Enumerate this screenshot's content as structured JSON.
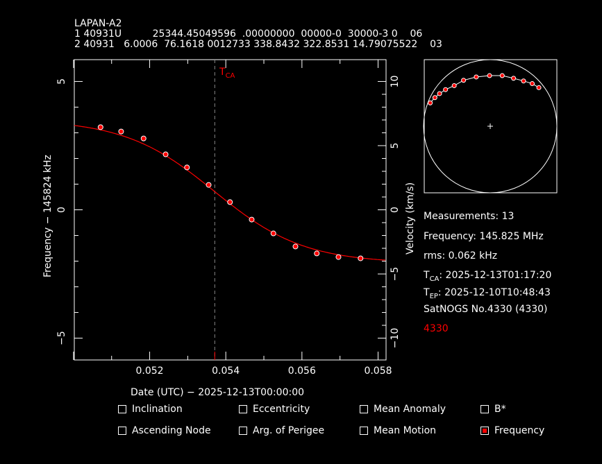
{
  "header": {
    "name": "LAPAN-A2",
    "tle_line1": "1 40931U          25344.45049596  .00000000  00000-0  30000-3 0    06",
    "tle_line2": "2 40931   6.0006  76.1618 0012733 338.8432 322.8531 14.79075522    03"
  },
  "chart_data": {
    "type": "scatter",
    "xlabel": "Date (UTC) − 2025-12-13T00:00:00",
    "ylabel": "Frequency − 145824 kHz",
    "y2label": "Velocity (km/s)",
    "xlim": [
      0.05002,
      0.05821
    ],
    "ylim": [
      -5.85,
      5.85
    ],
    "y2lim": [
      -11.7,
      11.7
    ],
    "xticks": [
      "0.052",
      "0.054",
      "0.056",
      "0.058"
    ],
    "xtick_values": [
      0.052,
      0.054,
      0.056,
      0.058
    ],
    "yticks": [
      "5",
      "0",
      "−5"
    ],
    "ytick_values": [
      5,
      0,
      -5
    ],
    "y2ticks": [
      "10",
      "5",
      "0",
      "−5",
      "−10"
    ],
    "y2tick_values": [
      10,
      5,
      0,
      -5,
      -10
    ],
    "tca_label": "T",
    "tca_sub": "CA",
    "tca_x": 0.05371,
    "points": {
      "x": [
        0.05071,
        0.05125,
        0.05184,
        0.05242,
        0.05298,
        0.05355,
        0.05411,
        0.05468,
        0.05525,
        0.05583,
        0.05639,
        0.05696,
        0.05754
      ],
      "y": [
        3.22,
        3.05,
        2.78,
        2.16,
        1.65,
        0.97,
        0.3,
        -0.38,
        -0.92,
        -1.43,
        -1.7,
        -1.84,
        -1.89
      ]
    },
    "fit": {
      "model": "c - A*tanh((t-t0)/w)",
      "c": 0.72,
      "A": 2.8,
      "t0": 0.0537,
      "w": 0.00235
    },
    "sky_track": {
      "x": [
        -0.9,
        -0.83,
        -0.76,
        -0.67,
        -0.54,
        -0.4,
        -0.21,
        -0.01,
        0.18,
        0.35,
        0.5,
        0.63,
        0.73
      ],
      "y": [
        0.35,
        0.43,
        0.49,
        0.55,
        0.61,
        0.69,
        0.74,
        0.76,
        0.76,
        0.72,
        0.68,
        0.64,
        0.58
      ]
    },
    "colors": {
      "points": "#ff0000",
      "fit": "#ff0000",
      "axes": "#ffffff",
      "tca": "#888888"
    }
  },
  "info": {
    "measurements": "Measurements: 13",
    "frequency": "Frequency: 145.825 MHz",
    "rms": "rms: 0.062 kHz",
    "tca_label": "T",
    "tca_sub": "CA",
    "tca_value": ": 2025-12-13T01:17:20",
    "tep_label": "T",
    "tep_sub": "EP",
    "tep_value": ": 2025-12-10T10:48:43",
    "station": "SatNOGS No.4330 (4330)",
    "station_id_red": "4330"
  },
  "checkboxes": [
    {
      "label": "Inclination",
      "checked": false
    },
    {
      "label": "Eccentricity",
      "checked": false
    },
    {
      "label": "Mean Anomaly",
      "checked": false
    },
    {
      "label": "B*",
      "checked": false
    },
    {
      "label": "Ascending Node",
      "checked": false
    },
    {
      "label": "Arg. of Perigee",
      "checked": false
    },
    {
      "label": "Mean Motion",
      "checked": false
    },
    {
      "label": "Frequency",
      "checked": true
    }
  ]
}
